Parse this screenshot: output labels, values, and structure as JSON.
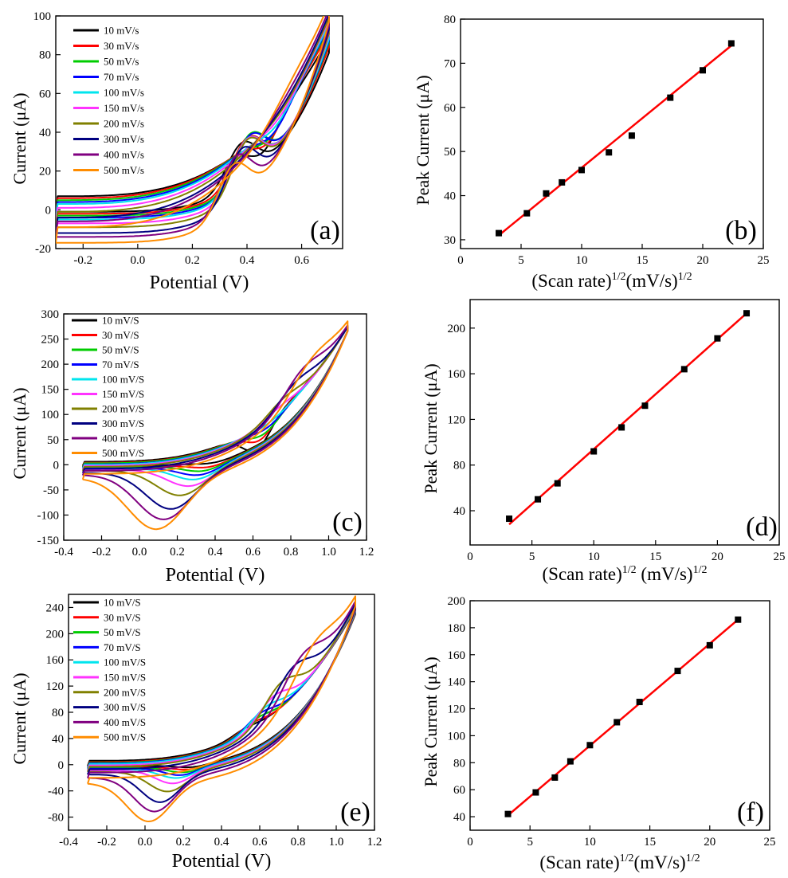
{
  "chart_data": [
    {
      "type": "line",
      "panel_label": "(a)",
      "xlabel": "Potential (V)",
      "ylabel": "Current (μA)",
      "xlim": [
        -0.3,
        0.75
      ],
      "ylim": [
        -20,
        100
      ],
      "xticks": [
        -0.2,
        0.0,
        0.2,
        0.4,
        0.6
      ],
      "xtick_labels": [
        "-0.2",
        "0.0",
        "0.2",
        "0.4",
        "0.6"
      ],
      "yticks": [
        -20,
        0,
        20,
        40,
        60,
        80,
        100
      ],
      "ytick_labels": [
        "-20",
        "0",
        "20",
        "40",
        "60",
        "80",
        "100"
      ],
      "legend_position": "top-left",
      "series": [
        {
          "name": "10 mV/s",
          "color": "#000000",
          "ox_peak": [
            0.46,
            30
          ],
          "red_peak": [
            0.38,
            22
          ],
          "i_low": 1,
          "i_end": 83,
          "ox_w": 0.07,
          "red_w": 0.08
        },
        {
          "name": "30 mV/s",
          "color": "#ff0000",
          "ox_peak": [
            0.48,
            35
          ],
          "red_peak": [
            0.4,
            22
          ],
          "i_low": 0,
          "i_end": 86,
          "ox_w": 0.07,
          "red_w": 0.08
        },
        {
          "name": "50 mV/s",
          "color": "#00cc00",
          "ox_peak": [
            0.49,
            38
          ],
          "red_peak": [
            0.41,
            22
          ],
          "i_low": -1,
          "i_end": 88,
          "ox_w": 0.08,
          "red_w": 0.08
        },
        {
          "name": "70 mV/s",
          "color": "#0000ff",
          "ox_peak": [
            0.5,
            40
          ],
          "red_peak": [
            0.41,
            21
          ],
          "i_low": -2,
          "i_end": 89,
          "ox_w": 0.08,
          "red_w": 0.08
        },
        {
          "name": "100 mV/s",
          "color": "#00e5ee",
          "ox_peak": [
            0.51,
            44
          ],
          "red_peak": [
            0.4,
            20
          ],
          "i_low": -3,
          "i_end": 90,
          "ox_w": 0.08,
          "red_w": 0.08
        },
        {
          "name": "150 mV/s",
          "color": "#ff33ff",
          "ox_peak": [
            0.52,
            48
          ],
          "red_peak": [
            0.4,
            19
          ],
          "i_low": -5,
          "i_end": 92,
          "ox_w": 0.09,
          "red_w": 0.08
        },
        {
          "name": "200 mV/s",
          "color": "#808000",
          "ox_peak": [
            0.53,
            52
          ],
          "red_peak": [
            0.4,
            18
          ],
          "i_low": -7,
          "i_end": 93,
          "ox_w": 0.09,
          "red_w": 0.08
        },
        {
          "name": "300 mV/s",
          "color": "#000080",
          "ox_peak": [
            0.55,
            58
          ],
          "red_peak": [
            0.38,
            15
          ],
          "i_low": -10,
          "i_end": 95,
          "ox_w": 0.1,
          "red_w": 0.08
        },
        {
          "name": "400 mV/s",
          "color": "#800080",
          "ox_peak": [
            0.56,
            63
          ],
          "red_peak": [
            0.36,
            13
          ],
          "i_low": -12,
          "i_end": 97,
          "ox_w": 0.1,
          "red_w": 0.08
        },
        {
          "name": "500 mV/s",
          "color": "#ff8c00",
          "ox_peak": [
            0.57,
            69
          ],
          "red_peak": [
            0.35,
            9
          ],
          "i_low": -15,
          "i_end": 99,
          "ox_w": 0.11,
          "red_w": 0.08
        }
      ]
    },
    {
      "type": "scatter",
      "panel_label": "(b)",
      "xlabel_main": "(Scan rate)",
      "xlabel_sup1": "1/2",
      "xlabel_mid": "(mV/s)",
      "xlabel_sup2": "1/2",
      "ylabel": "Peak Current (μA)",
      "xlim": [
        0,
        25
      ],
      "ylim": [
        28,
        80
      ],
      "xticks": [
        0,
        5,
        10,
        15,
        20,
        25
      ],
      "xtick_labels": [
        "0",
        "5",
        "10",
        "15",
        "20",
        "25"
      ],
      "yticks": [
        30,
        40,
        50,
        60,
        70,
        80
      ],
      "ytick_labels": [
        "30",
        "40",
        "50",
        "60",
        "70",
        "80"
      ],
      "x": [
        3.16,
        5.48,
        7.07,
        8.37,
        10.0,
        12.25,
        14.14,
        17.32,
        20.0,
        22.36
      ],
      "y": [
        31.5,
        36.0,
        40.5,
        43.0,
        45.8,
        49.8,
        53.6,
        62.2,
        68.4,
        74.5
      ],
      "fit": {
        "x": [
          3.16,
          22.36
        ],
        "y": [
          31.0,
          74.0
        ],
        "color": "#ff0000"
      }
    },
    {
      "type": "line",
      "panel_label": "(c)",
      "xlabel": "Potential (V)",
      "ylabel": "Current (μA)",
      "xlim": [
        -0.4,
        1.2
      ],
      "ylim": [
        -150,
        300
      ],
      "xticks": [
        -0.4,
        -0.2,
        0.0,
        0.2,
        0.4,
        0.6,
        0.8,
        1.0,
        1.2
      ],
      "xtick_labels": [
        "-0.4",
        "-0.2",
        "0.0",
        "0.2",
        "0.4",
        "0.6",
        "0.8",
        "1.0",
        "1.2"
      ],
      "yticks": [
        -150,
        -100,
        -50,
        0,
        50,
        100,
        150,
        200,
        250,
        300
      ],
      "ytick_labels": [
        "-150",
        "-100",
        "-50",
        "0",
        "50",
        "100",
        "150",
        "200",
        "250",
        "300"
      ],
      "legend_position": "top-left",
      "series": [
        {
          "name": "10 mV/S",
          "color": "#000000",
          "ox_peak": [
            0.62,
            30
          ],
          "red_peak": [
            0.4,
            -5
          ],
          "i_low": 0,
          "i_end": 268,
          "ox_w": 0.1,
          "red_w": 0.12
        },
        {
          "name": "30 mV/S",
          "color": "#ff0000",
          "ox_peak": [
            0.64,
            50
          ],
          "red_peak": [
            0.37,
            -12
          ],
          "i_low": -2,
          "i_end": 268,
          "ox_w": 0.1,
          "red_w": 0.13
        },
        {
          "name": "50 mV/S",
          "color": "#00cc00",
          "ox_peak": [
            0.66,
            62
          ],
          "red_peak": [
            0.34,
            -18
          ],
          "i_low": -3,
          "i_end": 268,
          "ox_w": 0.11,
          "red_w": 0.14
        },
        {
          "name": "70 mV/S",
          "color": "#0000ff",
          "ox_peak": [
            0.68,
            75
          ],
          "red_peak": [
            0.32,
            -25
          ],
          "i_low": -5,
          "i_end": 268,
          "ox_w": 0.11,
          "red_w": 0.15
        },
        {
          "name": "100 mV/S",
          "color": "#00e5ee",
          "ox_peak": [
            0.7,
            88
          ],
          "red_peak": [
            0.3,
            -33
          ],
          "i_low": -6,
          "i_end": 268,
          "ox_w": 0.12,
          "red_w": 0.16
        },
        {
          "name": "150 mV/S",
          "color": "#ff33ff",
          "ox_peak": [
            0.73,
            112
          ],
          "red_peak": [
            0.27,
            -45
          ],
          "i_low": -8,
          "i_end": 268,
          "ox_w": 0.12,
          "red_w": 0.17
        },
        {
          "name": "200 mV/S",
          "color": "#808000",
          "ox_peak": [
            0.76,
            132
          ],
          "red_peak": [
            0.22,
            -62
          ],
          "i_low": -10,
          "i_end": 268,
          "ox_w": 0.13,
          "red_w": 0.18
        },
        {
          "name": "300 mV/S",
          "color": "#000080",
          "ox_peak": [
            0.82,
            163
          ],
          "red_peak": [
            0.17,
            -88
          ],
          "i_low": -14,
          "i_end": 268,
          "ox_w": 0.14,
          "red_w": 0.19
        },
        {
          "name": "400 mV/S",
          "color": "#800080",
          "ox_peak": [
            0.86,
            190
          ],
          "red_peak": [
            0.13,
            -108
          ],
          "i_low": -18,
          "i_end": 268,
          "ox_w": 0.15,
          "red_w": 0.2
        },
        {
          "name": "500 mV/S",
          "color": "#ff8c00",
          "ox_peak": [
            0.91,
            212
          ],
          "red_peak": [
            0.09,
            -127
          ],
          "i_low": -24,
          "i_end": 268,
          "ox_w": 0.16,
          "red_w": 0.21
        }
      ]
    },
    {
      "type": "scatter",
      "panel_label": "(d)",
      "xlabel_main": "(Scan rate)",
      "xlabel_sup1": "1/2",
      "xlabel_mid": " (mV/s)",
      "xlabel_sup2": "1/2",
      "ylabel": "Peak Current (μA)",
      "xlim": [
        0,
        25
      ],
      "ylim": [
        10,
        225
      ],
      "xticks": [
        0,
        5,
        10,
        15,
        20,
        25
      ],
      "xtick_labels": [
        "0",
        "5",
        "10",
        "15",
        "20",
        "25"
      ],
      "yticks": [
        40,
        80,
        120,
        160,
        200
      ],
      "ytick_labels": [
        "40",
        "80",
        "120",
        "160",
        "200"
      ],
      "x": [
        3.16,
        5.48,
        7.07,
        10.0,
        12.25,
        14.14,
        17.32,
        20.0,
        22.36
      ],
      "y": [
        33,
        50,
        64,
        92,
        113,
        132,
        164,
        191,
        213
      ],
      "fit": {
        "x": [
          3.16,
          22.36
        ],
        "y": [
          28,
          213
        ],
        "color": "#ff0000"
      }
    },
    {
      "type": "line",
      "panel_label": "(e)",
      "xlabel": "Potential (V)",
      "ylabel": "Current (μA)",
      "xlim": [
        -0.4,
        1.2
      ],
      "ylim": [
        -100,
        260
      ],
      "xticks": [
        -0.4,
        -0.2,
        0.0,
        0.2,
        0.4,
        0.6,
        0.8,
        1.0,
        1.2
      ],
      "xtick_labels": [
        "-0.4",
        "-0.2",
        "0.0",
        "0.2",
        "0.4",
        "0.6",
        "0.8",
        "1.0",
        "1.2"
      ],
      "yticks": [
        -80,
        -40,
        0,
        40,
        80,
        120,
        160,
        200,
        240
      ],
      "ytick_labels": [
        "-80",
        "-40",
        "0",
        "40",
        "80",
        "120",
        "160",
        "200",
        "240"
      ],
      "legend_position": "top-left",
      "series": [
        {
          "name": "10 mV/S",
          "color": "#000000",
          "ox_peak": [
            0.52,
            55
          ],
          "red_peak": [
            0.25,
            -5
          ],
          "i_low": 0,
          "i_end": 232,
          "ox_w": 0.1,
          "red_w": 0.12
        },
        {
          "name": "30 mV/S",
          "color": "#ff0000",
          "ox_peak": [
            0.55,
            62
          ],
          "red_peak": [
            0.23,
            -8
          ],
          "i_low": -2,
          "i_end": 233,
          "ox_w": 0.1,
          "red_w": 0.12
        },
        {
          "name": "50 mV/S",
          "color": "#00cc00",
          "ox_peak": [
            0.58,
            70
          ],
          "red_peak": [
            0.21,
            -12
          ],
          "i_low": -3,
          "i_end": 234,
          "ox_w": 0.11,
          "red_w": 0.12
        },
        {
          "name": "70 mV/S",
          "color": "#0000ff",
          "ox_peak": [
            0.6,
            78
          ],
          "red_peak": [
            0.19,
            -16
          ],
          "i_low": -4,
          "i_end": 235,
          "ox_w": 0.11,
          "red_w": 0.12
        },
        {
          "name": "100 mV/S",
          "color": "#00e5ee",
          "ox_peak": [
            0.63,
            88
          ],
          "red_peak": [
            0.17,
            -20
          ],
          "i_low": -5,
          "i_end": 236,
          "ox_w": 0.12,
          "red_w": 0.13
        },
        {
          "name": "150 mV/S",
          "color": "#ff33ff",
          "ox_peak": [
            0.67,
            104
          ],
          "red_peak": [
            0.15,
            -28
          ],
          "i_low": -7,
          "i_end": 237,
          "ox_w": 0.12,
          "red_w": 0.13
        },
        {
          "name": "200 mV/S",
          "color": "#808000",
          "ox_peak": [
            0.71,
            125
          ],
          "red_peak": [
            0.12,
            -40
          ],
          "i_low": -9,
          "i_end": 238,
          "ox_w": 0.13,
          "red_w": 0.14
        },
        {
          "name": "300 mV/S",
          "color": "#000080",
          "ox_peak": [
            0.77,
            148
          ],
          "red_peak": [
            0.08,
            -56
          ],
          "i_low": -13,
          "i_end": 240,
          "ox_w": 0.14,
          "red_w": 0.14
        },
        {
          "name": "400 mV/S",
          "color": "#800080",
          "ox_peak": [
            0.82,
            167
          ],
          "red_peak": [
            0.05,
            -70
          ],
          "i_low": -18,
          "i_end": 242,
          "ox_w": 0.15,
          "red_w": 0.15
        },
        {
          "name": "500 mV/S",
          "color": "#ff8c00",
          "ox_peak": [
            0.88,
            184
          ],
          "red_peak": [
            0.02,
            -85
          ],
          "i_low": -26,
          "i_end": 244,
          "ox_w": 0.16,
          "red_w": 0.16
        }
      ]
    },
    {
      "type": "scatter",
      "panel_label": "(f)",
      "xlabel_main": "(Scan rate)",
      "xlabel_sup1": "1/2",
      "xlabel_mid": "(mV/s)",
      "xlabel_sup2": "1/2",
      "ylabel": "Peak Current (μA)",
      "xlim": [
        0,
        25
      ],
      "ylim": [
        30,
        200
      ],
      "xticks": [
        0,
        5,
        10,
        15,
        20,
        25
      ],
      "xtick_labels": [
        "0",
        "5",
        "10",
        "15",
        "20",
        "25"
      ],
      "yticks": [
        40,
        60,
        80,
        100,
        120,
        140,
        160,
        180,
        200
      ],
      "ytick_labels": [
        "40",
        "60",
        "80",
        "100",
        "120",
        "140",
        "160",
        "180",
        "200"
      ],
      "x": [
        3.16,
        5.48,
        7.07,
        8.37,
        10.0,
        12.25,
        14.14,
        17.32,
        20.0,
        22.36
      ],
      "y": [
        42,
        58,
        69,
        81,
        93,
        110,
        125,
        148,
        167,
        186
      ],
      "fit": {
        "x": [
          3.16,
          22.36
        ],
        "y": [
          41,
          186
        ],
        "color": "#ff0000"
      }
    }
  ]
}
